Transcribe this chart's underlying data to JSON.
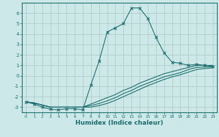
{
  "title": "",
  "xlabel": "Humidex (Indice chaleur)",
  "ylabel": "",
  "bg_color": "#cce8e8",
  "grid_color": "#b0c8c8",
  "line_color": "#1a6b6b",
  "xlim": [
    -0.5,
    23.5
  ],
  "ylim": [
    -3.5,
    7.0
  ],
  "yticks": [
    -3,
    -2,
    -1,
    0,
    1,
    2,
    3,
    4,
    5,
    6
  ],
  "xticks": [
    0,
    1,
    2,
    3,
    4,
    5,
    6,
    7,
    8,
    9,
    10,
    11,
    12,
    13,
    14,
    15,
    16,
    17,
    18,
    19,
    20,
    21,
    22,
    23
  ],
  "series": [
    {
      "x": [
        0,
        1,
        2,
        3,
        4,
        5,
        6,
        7,
        8,
        9,
        10,
        11,
        12,
        13,
        14,
        15,
        16,
        17,
        18,
        19,
        20,
        21,
        22,
        23
      ],
      "y": [
        -2.5,
        -2.7,
        -3.0,
        -3.2,
        -3.25,
        -3.15,
        -3.15,
        -3.25,
        -0.85,
        1.4,
        4.2,
        4.6,
        5.0,
        6.5,
        6.5,
        5.5,
        3.7,
        2.2,
        1.3,
        1.2,
        1.0,
        1.1,
        1.0,
        0.9
      ],
      "marker": "x"
    },
    {
      "x": [
        0,
        1,
        2,
        3,
        4,
        5,
        6,
        7,
        8,
        9,
        10,
        11,
        12,
        13,
        14,
        15,
        16,
        17,
        18,
        19,
        20,
        21,
        22,
        23
      ],
      "y": [
        -2.5,
        -2.6,
        -2.8,
        -3.0,
        -3.0,
        -3.0,
        -3.0,
        -3.0,
        -2.7,
        -2.4,
        -2.1,
        -1.8,
        -1.4,
        -1.1,
        -0.7,
        -0.4,
        -0.1,
        0.2,
        0.4,
        0.6,
        0.8,
        1.0,
        1.0,
        1.0
      ],
      "marker": null
    },
    {
      "x": [
        0,
        1,
        2,
        3,
        4,
        5,
        6,
        7,
        8,
        9,
        10,
        11,
        12,
        13,
        14,
        15,
        16,
        17,
        18,
        19,
        20,
        21,
        22,
        23
      ],
      "y": [
        -2.5,
        -2.6,
        -2.8,
        -3.0,
        -3.0,
        -3.0,
        -3.0,
        -3.0,
        -2.85,
        -2.65,
        -2.4,
        -2.1,
        -1.7,
        -1.4,
        -1.0,
        -0.7,
        -0.4,
        -0.1,
        0.1,
        0.3,
        0.6,
        0.8,
        0.85,
        0.85
      ],
      "marker": null
    },
    {
      "x": [
        0,
        1,
        2,
        3,
        4,
        5,
        6,
        7,
        8,
        9,
        10,
        11,
        12,
        13,
        14,
        15,
        16,
        17,
        18,
        19,
        20,
        21,
        22,
        23
      ],
      "y": [
        -2.5,
        -2.6,
        -2.8,
        -3.0,
        -3.0,
        -3.0,
        -3.0,
        -3.0,
        -3.0,
        -2.85,
        -2.65,
        -2.35,
        -2.0,
        -1.65,
        -1.3,
        -0.95,
        -0.65,
        -0.35,
        -0.1,
        0.1,
        0.35,
        0.6,
        0.7,
        0.75
      ],
      "marker": null
    }
  ]
}
